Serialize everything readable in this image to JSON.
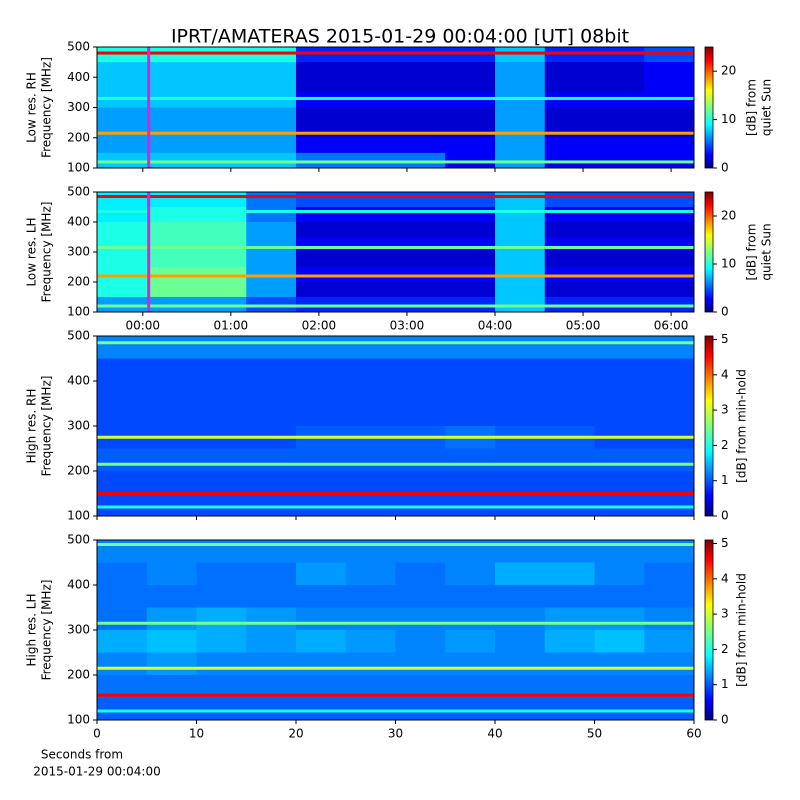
{
  "title": "IPRT/AMATERAS 2015-01-29 00:04:00 [UT]   08bit",
  "chart_data": [
    {
      "type": "heatmap",
      "ylabel": [
        "Low res. RH",
        "Frequency [MHz]"
      ],
      "xlim": [
        -0.52,
        6.26
      ],
      "xticks": [
        0,
        1,
        2,
        3,
        4,
        5,
        6
      ],
      "ylim": [
        100,
        500
      ],
      "yticks": [
        100,
        200,
        300,
        400,
        500
      ],
      "clim": [
        0,
        25
      ],
      "cticks": [
        0,
        10,
        20
      ],
      "clabel": [
        "[dB] from",
        "quiet Sun"
      ],
      "marker_x": 0.067,
      "marker_color": "#e020e0",
      "z": [
        [
          10,
          10,
          10,
          10,
          4,
          4,
          4,
          4,
          8,
          4,
          4,
          5
        ],
        [
          8,
          8,
          8,
          8,
          2,
          2,
          2,
          2,
          7,
          2,
          2,
          3
        ],
        [
          8,
          8,
          8,
          8,
          2,
          2,
          2,
          2,
          7,
          2,
          2,
          3
        ],
        [
          8,
          8,
          8,
          8,
          3,
          3,
          3,
          3,
          7,
          3,
          3,
          3
        ],
        [
          7,
          7,
          7,
          7,
          2,
          2,
          2,
          2,
          7,
          2,
          2,
          2
        ],
        [
          7,
          7,
          7,
          7,
          2,
          2,
          2,
          2,
          7,
          2,
          2,
          2
        ],
        [
          7,
          7,
          7,
          7,
          3,
          3,
          3,
          3,
          7,
          3,
          3,
          3
        ],
        [
          8,
          8,
          8,
          8,
          6,
          6,
          6,
          3,
          7,
          3,
          3,
          3
        ]
      ],
      "lines": [
        {
          "y": 480,
          "value": 22
        },
        {
          "y": 330,
          "value": 10
        },
        {
          "y": 215,
          "value": 18
        },
        {
          "y": 120,
          "value": 12
        }
      ]
    },
    {
      "type": "heatmap",
      "ylabel": [
        "Low res. LH",
        "Frequency [MHz]"
      ],
      "xlim": [
        -0.52,
        6.26
      ],
      "xticks": [
        {
          "value": 0,
          "label": "00:00"
        },
        {
          "value": 1,
          "label": "01:00"
        },
        {
          "value": 2,
          "label": "02:00"
        },
        {
          "value": 3,
          "label": "03:00"
        },
        {
          "value": 4,
          "label": "04:00"
        },
        {
          "value": 5,
          "label": "05:00"
        },
        {
          "value": 6,
          "label": "06:00"
        }
      ],
      "ylim": [
        100,
        500
      ],
      "yticks": [
        100,
        200,
        300,
        400,
        500
      ],
      "clim": [
        0,
        25
      ],
      "cticks": [
        0,
        10,
        20
      ],
      "clabel": [
        "[dB] from",
        "quiet Sun"
      ],
      "marker_x": 0.067,
      "marker_color": "#e020e0",
      "z": [
        [
          9,
          9,
          9,
          6,
          5,
          5,
          5,
          5,
          8,
          5,
          5,
          5
        ],
        [
          9,
          10,
          10,
          6,
          3,
          3,
          3,
          3,
          8,
          3,
          3,
          3
        ],
        [
          10,
          11,
          11,
          7,
          2,
          2,
          2,
          2,
          8,
          2,
          2,
          2
        ],
        [
          10,
          11,
          11,
          7,
          3,
          3,
          3,
          3,
          8,
          3,
          3,
          3
        ],
        [
          10,
          11,
          11,
          7,
          2,
          2,
          2,
          2,
          8,
          2,
          2,
          2
        ],
        [
          10,
          12,
          12,
          7,
          3,
          3,
          3,
          3,
          8,
          3,
          3,
          3
        ],
        [
          10,
          12,
          12,
          7,
          2,
          2,
          2,
          2,
          8,
          2,
          2,
          2
        ],
        [
          7,
          7,
          7,
          5,
          4,
          4,
          4,
          4,
          8,
          4,
          4,
          4
        ]
      ],
      "lines": [
        {
          "y": 485,
          "value": 22
        },
        {
          "y": 435,
          "value": 10
        },
        {
          "y": 315,
          "value": 12
        },
        {
          "y": 220,
          "value": 18
        },
        {
          "y": 120,
          "value": 12
        }
      ]
    },
    {
      "type": "heatmap",
      "ylabel": [
        "High res. RH",
        "Frequency [MHz]"
      ],
      "xlim": [
        0,
        60
      ],
      "xticks": [
        0,
        10,
        20,
        30,
        40,
        50,
        60
      ],
      "ylim": [
        100,
        500
      ],
      "yticks": [
        100,
        200,
        300,
        400,
        500
      ],
      "clim": [
        0,
        5.1
      ],
      "cticks": [
        0,
        1,
        2,
        3,
        4,
        5
      ],
      "clabel": [
        "[dB] from min-hold"
      ],
      "z": [
        [
          1.3,
          1.3,
          1.3,
          1.3,
          1.3,
          1.3,
          1.3,
          1.3,
          1.3,
          1.3,
          1.3,
          1.3
        ],
        [
          1,
          1,
          1,
          1,
          1,
          1,
          1,
          1,
          1,
          1,
          1,
          1
        ],
        [
          1,
          1,
          1,
          1,
          1,
          1,
          1,
          1,
          1,
          1,
          1,
          1
        ],
        [
          1,
          1,
          1,
          1,
          1,
          1,
          1,
          1,
          1,
          1,
          1,
          1
        ],
        [
          1,
          1,
          1,
          1,
          1.1,
          1.1,
          1.1,
          1.2,
          1.1,
          1.1,
          1,
          1
        ],
        [
          1.1,
          1.1,
          1.1,
          1.1,
          1.1,
          1.1,
          1.1,
          1.1,
          1.1,
          1.1,
          1.1,
          1.1
        ],
        [
          1,
          1,
          1,
          1,
          1,
          1,
          1,
          1,
          1,
          1,
          1,
          1
        ],
        [
          1,
          1,
          1,
          1,
          1,
          1,
          1,
          1,
          1,
          1,
          1,
          1
        ]
      ],
      "lines": [
        {
          "y": 485,
          "value": 2.5
        },
        {
          "y": 275,
          "value": 3
        },
        {
          "y": 215,
          "value": 2.5
        },
        {
          "y": 150,
          "value": 4.5
        },
        {
          "y": 120,
          "value": 2
        }
      ]
    },
    {
      "type": "heatmap",
      "ylabel": [
        "High res. LH",
        "Frequency [MHz]"
      ],
      "xlim": [
        0,
        60
      ],
      "xticks": [
        0,
        10,
        20,
        30,
        40,
        50,
        60
      ],
      "ylim": [
        100,
        500
      ],
      "yticks": [
        100,
        200,
        300,
        400,
        500
      ],
      "clim": [
        0,
        5.1
      ],
      "cticks": [
        0,
        1,
        2,
        3,
        4,
        5
      ],
      "clabel": [
        "[dB] from min-hold"
      ],
      "xlabel": [
        "Seconds from",
        "2015-01-29 00:04:00"
      ],
      "z": [
        [
          1.3,
          1.3,
          1.3,
          1.3,
          1.3,
          1.3,
          1.3,
          1.3,
          1.3,
          1.3,
          1.3,
          1.3
        ],
        [
          1.2,
          1.3,
          1.2,
          1.2,
          1.4,
          1.3,
          1.2,
          1.3,
          1.5,
          1.5,
          1.3,
          1.2
        ],
        [
          1.2,
          1.2,
          1.2,
          1.2,
          1.2,
          1.2,
          1.2,
          1.2,
          1.2,
          1.2,
          1.2,
          1.2
        ],
        [
          1.2,
          1.4,
          1.5,
          1.4,
          1.3,
          1.3,
          1.3,
          1.3,
          1.3,
          1.4,
          1.4,
          1.3
        ],
        [
          1.5,
          1.6,
          1.5,
          1.4,
          1.5,
          1.4,
          1.3,
          1.4,
          1.3,
          1.5,
          1.6,
          1.4
        ],
        [
          1.3,
          1.4,
          1.3,
          1.3,
          1.3,
          1.3,
          1.3,
          1.3,
          1.3,
          1.3,
          1.3,
          1.3
        ],
        [
          1.2,
          1.2,
          1.2,
          1.2,
          1.2,
          1.2,
          1.2,
          1.2,
          1.2,
          1.2,
          1.2,
          1.2
        ],
        [
          1.1,
          1.1,
          1.1,
          1.1,
          1.1,
          1.1,
          1.1,
          1.1,
          1.1,
          1.1,
          1.1,
          1.1
        ]
      ],
      "lines": [
        {
          "y": 490,
          "value": 2.5
        },
        {
          "y": 315,
          "value": 2.5
        },
        {
          "y": 215,
          "value": 3
        },
        {
          "y": 155,
          "value": 4.5
        },
        {
          "y": 120,
          "value": 2
        }
      ]
    }
  ]
}
